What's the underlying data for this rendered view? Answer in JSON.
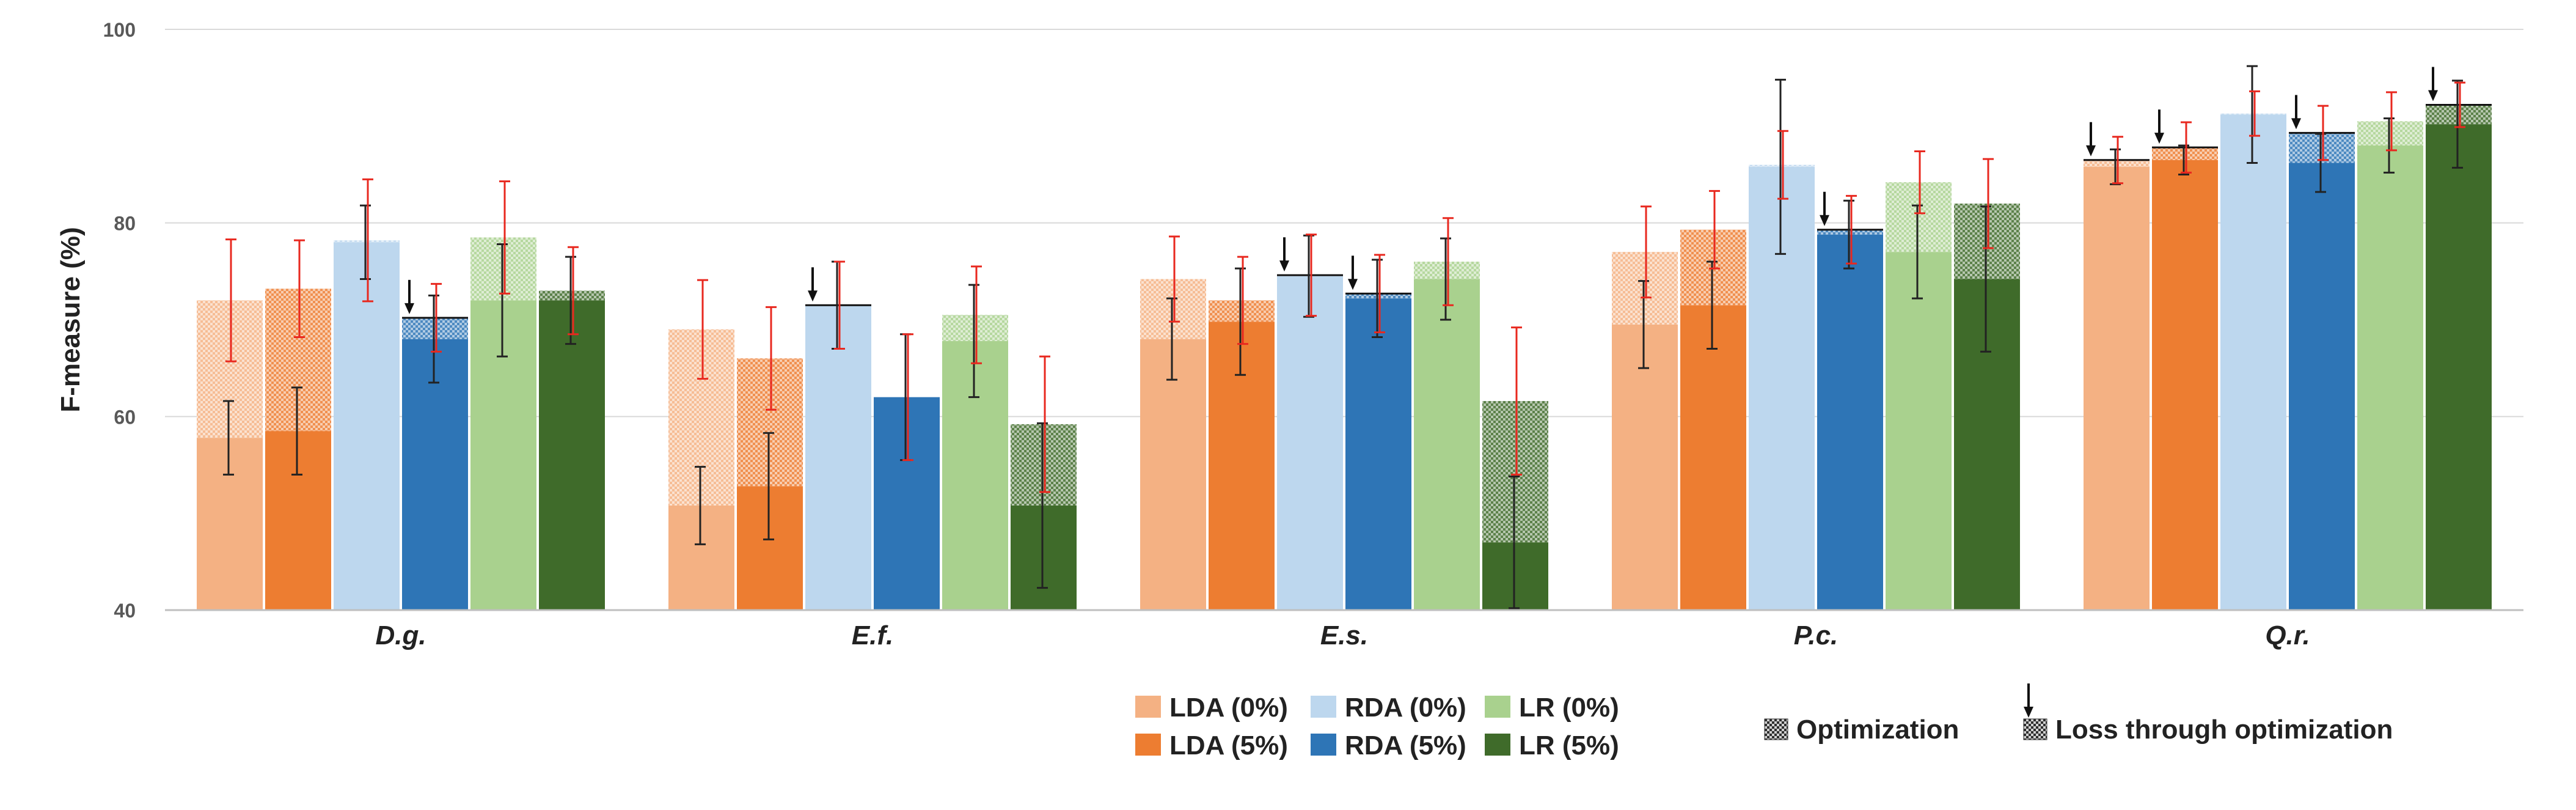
{
  "chart_data": {
    "type": "bar",
    "title": "",
    "xlabel": "",
    "ylabel": "F-measure (%)",
    "ylim": [
      40,
      100
    ],
    "yticks": [
      40,
      60,
      80,
      100
    ],
    "grid": true,
    "categories": [
      "D.g.",
      "E.f.",
      "E.s.",
      "P.c.",
      "Q.r."
    ],
    "series": [
      {
        "name": "LDA (0%)",
        "color": "#F4B183",
        "base": [
          57.8,
          50.8,
          68.0,
          69.5,
          85.8
        ],
        "optimized": [
          72.0,
          69.0,
          74.2,
          77.0,
          86.5
        ],
        "loss": [
          false,
          false,
          false,
          false,
          true
        ],
        "err_base": [
          3.8,
          4.0,
          4.2,
          4.5,
          1.8
        ],
        "err_opt": [
          6.3,
          5.1,
          4.4,
          4.7,
          2.4
        ]
      },
      {
        "name": "LDA (5%)",
        "color": "#ED7D31",
        "base": [
          58.5,
          52.8,
          69.8,
          71.5,
          86.5
        ],
        "optimized": [
          73.2,
          66.0,
          72.0,
          79.3,
          87.8
        ],
        "loss": [
          false,
          false,
          false,
          false,
          true
        ],
        "err_base": [
          4.5,
          5.5,
          5.5,
          4.5,
          1.5
        ],
        "err_opt": [
          5.0,
          5.3,
          4.5,
          4.0,
          2.6
        ]
      },
      {
        "name": "RDA (0%)",
        "color": "#BDD7EE",
        "base": [
          78.0,
          71.5,
          74.5,
          85.8,
          91.2
        ],
        "optimized": [
          78.2,
          71.5,
          74.6,
          86.0,
          91.3
        ],
        "loss": [
          false,
          true,
          true,
          false,
          false
        ],
        "err_base": [
          3.8,
          4.5,
          4.2,
          9.0,
          5.0
        ],
        "err_opt": [
          6.3,
          4.5,
          4.2,
          3.5,
          2.3
        ]
      },
      {
        "name": "RDA (5%)",
        "color": "#2E75B6",
        "base": [
          68.0,
          62.0,
          72.2,
          78.8,
          86.2
        ],
        "optimized": [
          70.2,
          62.0,
          72.7,
          79.3,
          89.3
        ],
        "loss": [
          true,
          false,
          true,
          true,
          true
        ],
        "err_base": [
          4.5,
          6.5,
          4.0,
          3.5,
          3.0
        ],
        "err_opt": [
          3.5,
          6.5,
          4.0,
          3.5,
          2.8
        ]
      },
      {
        "name": "LR (0%)",
        "color": "#A9D18E",
        "base": [
          72.0,
          67.8,
          74.2,
          77.0,
          88.0
        ],
        "optimized": [
          78.5,
          70.5,
          76.0,
          84.2,
          90.5
        ],
        "loss": [
          false,
          false,
          false,
          false,
          false
        ],
        "err_base": [
          5.8,
          5.8,
          4.2,
          4.8,
          2.8
        ],
        "err_opt": [
          5.8,
          5.0,
          4.5,
          3.2,
          3.0
        ]
      },
      {
        "name": "LR (5%)",
        "color": "#3F6B2A",
        "base": [
          72.0,
          50.8,
          47.0,
          74.2,
          90.2
        ],
        "optimized": [
          73.0,
          59.2,
          61.6,
          82.0,
          92.2
        ],
        "loss": [
          false,
          false,
          false,
          false,
          true
        ],
        "err_base": [
          4.5,
          8.5,
          6.8,
          7.5,
          4.5
        ],
        "err_opt": [
          4.5,
          7.0,
          7.6,
          4.6,
          2.3
        ]
      }
    ],
    "legend": {
      "position": "bottom",
      "labels": [
        "LDA (0%)",
        "RDA (0%)",
        "LR (0%)",
        "LDA (5%)",
        "RDA (5%)",
        "LR (5%)"
      ],
      "optimization": "Optimization",
      "loss": "Loss through optimization"
    }
  },
  "colors": {
    "axis": "#bfbfbf",
    "grid": "#d9d9d9",
    "err_base": "#222222",
    "err_opt": "#e8281f"
  }
}
